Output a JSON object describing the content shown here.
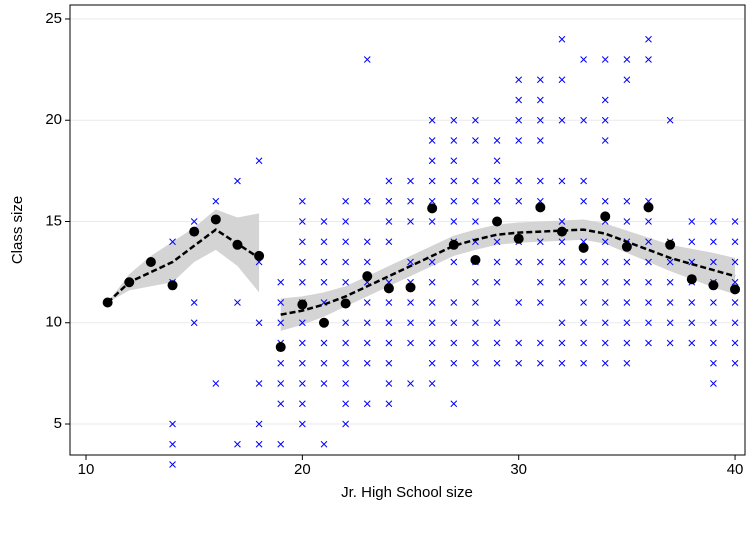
{
  "chart_data": {
    "type": "scatter",
    "x_label": "Jr. High School size",
    "y_label": "Class size",
    "xlim": [
      9.26,
      40.46
    ],
    "ylim": [
      3.47,
      25.69
    ],
    "xticks": [
      10,
      20,
      30,
      40
    ],
    "yticks": [
      5,
      10,
      15,
      20,
      25
    ],
    "grid": true,
    "layers": [
      {
        "type": "band",
        "color": "#d4d4d4",
        "x": [
          11,
          12,
          13,
          14,
          15,
          16,
          17,
          18
        ],
        "lower": [
          11.0,
          11.6,
          11.8,
          12.0,
          13.0,
          13.6,
          12.8,
          11.5
        ],
        "upper": [
          11.0,
          12.4,
          13.3,
          14.0,
          14.7,
          15.6,
          15.2,
          15.4
        ]
      },
      {
        "type": "band",
        "color": "#d4d4d4",
        "x": [
          19,
          20,
          21,
          22,
          23,
          24,
          25,
          26,
          27,
          28,
          29,
          30,
          31,
          32,
          33,
          34,
          35,
          36,
          37,
          38,
          39,
          40
        ],
        "lower": [
          9.6,
          9.9,
          10.3,
          10.8,
          11.3,
          11.8,
          12.3,
          12.8,
          13.3,
          13.6,
          13.85,
          13.95,
          14.0,
          14.05,
          14.1,
          13.9,
          13.45,
          13.0,
          12.55,
          12.15,
          11.75,
          11.4
        ],
        "upper": [
          11.2,
          11.3,
          11.5,
          11.8,
          12.3,
          12.8,
          13.3,
          13.8,
          14.3,
          14.6,
          14.85,
          14.95,
          15.0,
          15.05,
          15.1,
          14.9,
          14.55,
          14.2,
          13.85,
          13.65,
          13.45,
          13.2
        ]
      },
      {
        "type": "scatter",
        "marker": "x",
        "color": "#0000ff",
        "x": [
          11,
          12,
          13,
          14,
          14,
          14,
          14,
          14,
          15,
          15,
          15,
          16,
          16,
          17,
          17,
          17,
          18,
          18,
          18,
          18,
          18,
          18,
          19,
          19,
          19,
          19,
          19,
          19,
          19,
          19,
          20,
          20,
          20,
          20,
          20,
          20,
          20,
          20,
          20,
          20,
          20,
          20,
          21,
          21,
          21,
          21,
          21,
          21,
          21,
          21,
          21,
          21,
          22,
          22,
          22,
          22,
          22,
          22,
          22,
          22,
          22,
          22,
          22,
          22,
          23,
          23,
          23,
          23,
          23,
          23,
          23,
          23,
          23,
          23,
          24,
          24,
          24,
          24,
          24,
          24,
          24,
          24,
          24,
          24,
          24,
          25,
          25,
          25,
          25,
          25,
          25,
          25,
          25,
          25,
          26,
          26,
          26,
          26,
          26,
          26,
          26,
          26,
          26,
          26,
          26,
          26,
          26,
          27,
          27,
          27,
          27,
          27,
          27,
          27,
          27,
          27,
          27,
          27,
          27,
          27,
          28,
          28,
          28,
          28,
          28,
          28,
          28,
          28,
          28,
          28,
          28,
          28,
          29,
          29,
          29,
          29,
          29,
          29,
          29,
          29,
          29,
          29,
          30,
          30,
          30,
          30,
          30,
          30,
          30,
          30,
          30,
          30,
          30,
          31,
          31,
          31,
          31,
          31,
          31,
          31,
          31,
          31,
          31,
          31,
          31,
          32,
          32,
          32,
          32,
          32,
          32,
          32,
          32,
          32,
          32,
          32,
          33,
          33,
          33,
          33,
          33,
          33,
          33,
          33,
          33,
          33,
          33,
          34,
          34,
          34,
          34,
          34,
          34,
          34,
          34,
          34,
          34,
          34,
          34,
          34,
          35,
          35,
          35,
          35,
          35,
          35,
          35,
          35,
          35,
          35,
          35,
          36,
          36,
          36,
          36,
          36,
          36,
          36,
          36,
          36,
          36,
          37,
          37,
          37,
          37,
          37,
          37,
          37,
          38,
          38,
          38,
          38,
          38,
          38,
          38,
          39,
          39,
          39,
          39,
          39,
          39,
          39,
          39,
          39,
          40,
          40,
          40,
          40,
          40,
          40,
          40,
          40
        ],
        "y": [
          11,
          12,
          13,
          14,
          12,
          5,
          4,
          3,
          15,
          11,
          10,
          16,
          7,
          17,
          11,
          4,
          18,
          13,
          10,
          7,
          5,
          4,
          12,
          11,
          10,
          9,
          8,
          7,
          6,
          4,
          16,
          15,
          14,
          13,
          12,
          11,
          10,
          9,
          8,
          7,
          6,
          5,
          15,
          14,
          13,
          12,
          11,
          10,
          9,
          8,
          7,
          4,
          16,
          15,
          14,
          13,
          12,
          11,
          10,
          9,
          8,
          7,
          6,
          5,
          23,
          16,
          14,
          13,
          12,
          11,
          10,
          9,
          8,
          6,
          17,
          16,
          15,
          14,
          12,
          11,
          10,
          9,
          8,
          7,
          6,
          17,
          16,
          15,
          13,
          12,
          11,
          10,
          9,
          7,
          20,
          19,
          18,
          17,
          16,
          15,
          13,
          12,
          11,
          10,
          9,
          8,
          7,
          20,
          19,
          18,
          17,
          16,
          15,
          14,
          13,
          11,
          10,
          9,
          8,
          6,
          20,
          19,
          17,
          16,
          15,
          14,
          13,
          12,
          11,
          10,
          9,
          8,
          19,
          18,
          17,
          16,
          14,
          13,
          12,
          10,
          9,
          8,
          22,
          21,
          20,
          19,
          17,
          16,
          14,
          13,
          11,
          9,
          8,
          22,
          21,
          20,
          19,
          17,
          16,
          14,
          13,
          12,
          11,
          9,
          8,
          24,
          22,
          20,
          17,
          15,
          14,
          13,
          12,
          10,
          9,
          8,
          23,
          20,
          17,
          16,
          14,
          13,
          12,
          11,
          10,
          9,
          8,
          23,
          21,
          20,
          19,
          16,
          15,
          14,
          13,
          12,
          11,
          10,
          9,
          8,
          23,
          22,
          16,
          15,
          14,
          13,
          12,
          11,
          10,
          9,
          8,
          24,
          23,
          16,
          15,
          14,
          13,
          12,
          11,
          10,
          9,
          20,
          14,
          13,
          12,
          11,
          10,
          9,
          15,
          14,
          13,
          12,
          11,
          10,
          9,
          15,
          14,
          13,
          12,
          11,
          10,
          9,
          8,
          7,
          15,
          14,
          13,
          12,
          11,
          10,
          9,
          8
        ]
      },
      {
        "type": "line",
        "color": "#000000",
        "dash": true,
        "x": [
          11,
          12,
          13,
          14,
          15,
          16,
          17,
          18
        ],
        "y": [
          11.0,
          12.0,
          12.5,
          13.0,
          13.8,
          14.6,
          13.9,
          13.2
        ]
      },
      {
        "type": "line",
        "color": "#000000",
        "dash": true,
        "x": [
          19,
          20,
          21,
          22,
          23,
          24,
          25,
          26,
          27,
          28,
          29,
          30,
          31,
          32,
          33,
          34,
          35,
          36,
          37,
          38,
          39,
          40
        ],
        "y": [
          10.4,
          10.6,
          10.9,
          11.3,
          11.8,
          12.3,
          12.8,
          13.3,
          13.8,
          14.1,
          14.35,
          14.45,
          14.5,
          14.55,
          14.6,
          14.4,
          14.0,
          13.6,
          13.2,
          12.9,
          12.6,
          12.3
        ]
      },
      {
        "type": "scatter",
        "marker": "dot",
        "color": "#000000",
        "x": [
          11,
          12,
          13,
          14,
          15,
          16,
          17,
          18,
          19,
          20,
          21,
          22,
          23,
          24,
          25,
          26,
          27,
          28,
          29,
          30,
          31,
          32,
          33,
          34,
          35,
          36,
          37,
          38,
          39,
          40
        ],
        "y": [
          11.0,
          12.0,
          13.0,
          11.85,
          14.5,
          15.1,
          13.85,
          13.3,
          8.8,
          10.9,
          10.0,
          10.95,
          12.3,
          11.7,
          11.75,
          15.65,
          13.85,
          13.1,
          15.0,
          14.15,
          15.7,
          14.5,
          13.7,
          15.25,
          13.75,
          15.7,
          13.85,
          12.15,
          11.85,
          11.65
        ]
      }
    ]
  }
}
